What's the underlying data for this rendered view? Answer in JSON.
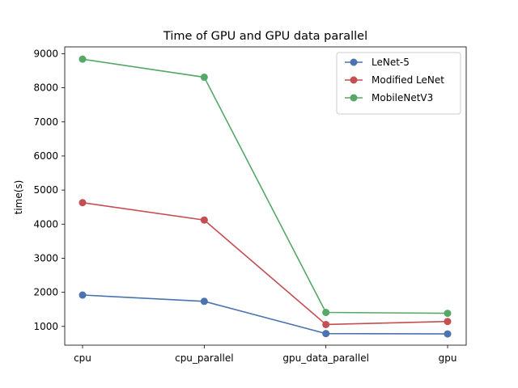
{
  "chart_data": {
    "type": "line",
    "title": "Time of GPU and GPU data parallel",
    "xlabel": "",
    "ylabel": "time(s)",
    "categories": [
      "cpu",
      "cpu_parallel",
      "gpu_data_parallel",
      "gpu"
    ],
    "ylim": [
      450,
      9200
    ],
    "yticks": [
      1000,
      2000,
      3000,
      4000,
      5000,
      6000,
      7000,
      8000,
      9000
    ],
    "grid": false,
    "legend_position": "top-right",
    "series": [
      {
        "name": "LeNet-5",
        "color": "#4c72b0",
        "values": [
          1920,
          1735,
          790,
          780
        ]
      },
      {
        "name": "Modified LeNet",
        "color": "#c44e52",
        "values": [
          4630,
          4120,
          1055,
          1145
        ]
      },
      {
        "name": "MobileNetV3",
        "color": "#55a868",
        "values": [
          8840,
          8310,
          1410,
          1385
        ]
      }
    ]
  }
}
